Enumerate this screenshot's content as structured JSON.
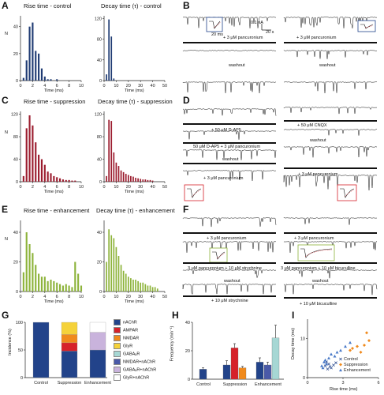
{
  "panels": {
    "A": {
      "letter": "A",
      "left_title": "Rise time - control",
      "right_title": "Decay time (τ) - control",
      "y_label": "N",
      "x_label": "Time (ms)"
    },
    "B": {
      "letter": "B",
      "scale_pa": "0.1 nA",
      "scale_time": "20 s",
      "scale_inset": "20 ms",
      "left_labels": [
        "+ 3 μM pancuronium",
        "washout"
      ],
      "right_labels": [
        "+ 3 μM pancuronium",
        "washout"
      ]
    },
    "C": {
      "letter": "C",
      "left_title": "Rise time - suppression",
      "right_title": "Decay time (τ) - suppression",
      "y_label": "N",
      "x_label": "Time (ms)"
    },
    "D": {
      "letter": "D",
      "left_labels": [
        "+ 50 μM D-AP5",
        "50 μM D-AP5 + 3 μM pancuronium",
        "washout",
        "+ 3 μM pancuronium"
      ],
      "right_labels": [
        "+ 50 μM CNQX",
        "washout",
        "+ 3 μM pancuronium"
      ]
    },
    "E": {
      "letter": "E",
      "left_title": "Rise time - enhancement",
      "right_title": "Decay time (τ) - enhancement",
      "y_label": "N",
      "x_label": "Time (ms)"
    },
    "F": {
      "letter": "F",
      "left_labels": [
        "+ 3 μM pancuronium",
        "3 μM pancuronium + 10 μM strychnine",
        "washout",
        "+ 10 μM strychnine"
      ],
      "right_labels": [
        "+ 3 μM pancuronium",
        "3 μM pancuronium + 10 μM bicuculline",
        "washout",
        "+ 10 μM bicuculline"
      ]
    },
    "G": {
      "letter": "G",
      "y_label": "Incidence (%)"
    },
    "H": {
      "letter": "H",
      "y_label": "Frequency (min⁻¹)"
    },
    "I": {
      "letter": "I",
      "y_label": "Decay time (ms)",
      "x_label": "Rise time (ms)"
    }
  },
  "colors": {
    "control": "#1f3b73",
    "suppression": "#9b1c2e",
    "enhancement": "#8db33a"
  },
  "chart_data": [
    {
      "id": "A-rise",
      "type": "bar",
      "title": "Rise time - control",
      "xlabel": "Time (ms)",
      "ylabel": "N",
      "xticks": [
        "0",
        "2",
        "4",
        "6",
        "8",
        "10"
      ],
      "yticks": [
        "0",
        "20",
        "40"
      ],
      "ylim": [
        0,
        48
      ],
      "xlim": [
        0,
        10
      ],
      "x": [
        0.5,
        1,
        1.5,
        2,
        2.5,
        3,
        3.5,
        4,
        4.5,
        5,
        5.5,
        6
      ],
      "values": [
        2,
        15,
        40,
        43,
        22,
        20,
        9,
        3,
        1,
        1,
        0,
        1
      ]
    },
    {
      "id": "A-decay",
      "type": "bar",
      "title": "Decay time (τ) - control",
      "xlabel": "Time (ms)",
      "ylabel": "",
      "xticks": [
        "0",
        "10",
        "20",
        "30",
        "40",
        "50"
      ],
      "yticks": [
        "0",
        "40",
        "80",
        "120"
      ],
      "ylim": [
        0,
        125
      ],
      "xlim": [
        0,
        50
      ],
      "x": [
        2,
        4,
        6,
        8
      ],
      "values": [
        12,
        118,
        85,
        4
      ]
    },
    {
      "id": "C-rise",
      "type": "bar",
      "title": "Rise time - suppression",
      "xlabel": "Time (ms)",
      "ylabel": "N",
      "xticks": [
        "0",
        "2",
        "4",
        "6",
        "8",
        "10"
      ],
      "yticks": [
        "0",
        "40",
        "80",
        "120"
      ],
      "ylim": [
        0,
        125
      ],
      "xlim": [
        0,
        10
      ],
      "x": [
        0.5,
        1,
        1.5,
        2,
        2.5,
        3,
        3.5,
        4,
        4.5,
        5,
        5.5,
        6,
        6.5,
        7,
        7.5,
        8,
        8.5,
        9
      ],
      "values": [
        10,
        95,
        118,
        100,
        70,
        48,
        40,
        30,
        18,
        15,
        10,
        8,
        6,
        4,
        3,
        3,
        2,
        2
      ]
    },
    {
      "id": "C-decay",
      "type": "bar",
      "title": "Decay time (τ) - suppression",
      "xlabel": "Time (ms)",
      "ylabel": "",
      "xticks": [
        "0",
        "10",
        "20",
        "30",
        "40",
        "50"
      ],
      "yticks": [
        "0",
        "40",
        "80",
        "120"
      ],
      "ylim": [
        0,
        125
      ],
      "xlim": [
        0,
        50
      ],
      "x": [
        2,
        4,
        6,
        8,
        10,
        12,
        14,
        16,
        18,
        20,
        22,
        24,
        26,
        28,
        30,
        32,
        34,
        36,
        38,
        40
      ],
      "values": [
        10,
        110,
        108,
        52,
        34,
        28,
        20,
        17,
        14,
        12,
        10,
        9,
        7,
        6,
        5,
        4,
        4,
        3,
        3,
        2
      ]
    },
    {
      "id": "E-rise",
      "type": "bar",
      "title": "Rise time - enhancement",
      "xlabel": "Time (ms)",
      "ylabel": "N",
      "xticks": [
        "0",
        "2",
        "4",
        "6",
        "8",
        "10"
      ],
      "yticks": [
        "0",
        "20",
        "40"
      ],
      "ylim": [
        0,
        48
      ],
      "xlim": [
        0,
        10
      ],
      "x": [
        0.5,
        1,
        1.5,
        2,
        2.5,
        3,
        3.5,
        4,
        4.5,
        5,
        5.5,
        6,
        6.5,
        7,
        7.5,
        8,
        8.5,
        9,
        9.5,
        10
      ],
      "values": [
        13,
        40,
        32,
        26,
        18,
        12,
        10,
        10,
        7,
        8,
        7,
        6,
        5,
        4,
        5,
        4,
        3,
        20,
        12,
        4
      ]
    },
    {
      "id": "E-decay",
      "type": "bar",
      "title": "Decay time (τ) - enhancement",
      "xlabel": "Time (ms)",
      "ylabel": "",
      "xticks": [
        "0",
        "10",
        "20",
        "30",
        "40",
        "50"
      ],
      "yticks": [
        "0",
        "20",
        "40"
      ],
      "ylim": [
        0,
        48
      ],
      "xlim": [
        0,
        50
      ],
      "x": [
        2,
        4,
        6,
        8,
        10,
        12,
        14,
        16,
        18,
        20,
        22,
        24,
        26,
        28,
        30,
        32,
        34,
        36,
        38,
        40,
        42,
        44
      ],
      "values": [
        20,
        42,
        38,
        36,
        30,
        24,
        18,
        14,
        12,
        10,
        9,
        8,
        8,
        7,
        6,
        6,
        5,
        4,
        4,
        3,
        3,
        2
      ]
    },
    {
      "id": "G",
      "type": "bar",
      "stacked": true,
      "ylabel": "Incidence (%)",
      "yticks": [
        "0",
        "50",
        "100"
      ],
      "ylim": [
        0,
        100
      ],
      "categories": [
        "Control",
        "Suppression",
        "Enhancement"
      ],
      "series": [
        {
          "name": "nAChR",
          "color": "#22438a",
          "values": [
            100,
            48,
            50
          ]
        },
        {
          "name": "AMPAR",
          "color": "#d6222a",
          "values": [
            0,
            15,
            0
          ]
        },
        {
          "name": "NMDAR",
          "color": "#f08a1c",
          "values": [
            0,
            15,
            0
          ]
        },
        {
          "name": "GlyR",
          "color": "#f5d23a",
          "values": [
            0,
            22,
            0
          ]
        },
        {
          "name": "GABAₐR",
          "color": "#a6d7d4",
          "values": [
            0,
            0,
            0
          ]
        },
        {
          "name": "NMDAR+nAChR",
          "color": "#4a5aa8",
          "values": [
            0,
            0,
            0
          ]
        },
        {
          "name": "GABAₐR+nAChR",
          "color": "#c9b3dc",
          "values": [
            0,
            0,
            32
          ]
        },
        {
          "name": "GlyR+nAChR",
          "color": "#ffffff",
          "values": [
            0,
            0,
            18
          ]
        }
      ]
    },
    {
      "id": "H",
      "type": "bar",
      "ylabel": "Frequency (min⁻¹)",
      "yticks": [
        "0",
        "20",
        "40"
      ],
      "ylim": [
        0,
        40
      ],
      "categories": [
        "Control",
        "Suppression",
        "Enhancement"
      ],
      "groups": [
        {
          "name": "Control",
          "bars": [
            {
              "color": "#22438a",
              "value": 7,
              "err": 1
            }
          ]
        },
        {
          "name": "Suppression",
          "bars": [
            {
              "color": "#22438a",
              "value": 10,
              "err": 3
            },
            {
              "color": "#d6222a",
              "value": 22,
              "err": 3
            },
            {
              "color": "#f08a1c",
              "value": 8,
              "err": 1
            }
          ]
        },
        {
          "name": "Enhancement",
          "bars": [
            {
              "color": "#22438a",
              "value": 12,
              "err": 3
            },
            {
              "color": "#4a5aa8",
              "value": 10,
              "err": 2
            },
            {
              "color": "#a6d7d4",
              "value": 29,
              "err": 9
            }
          ]
        }
      ]
    },
    {
      "id": "I",
      "type": "scatter",
      "xlabel": "Rise time (ms)",
      "ylabel": "Decay time (ms)",
      "xticks": [
        "0",
        "3",
        "6"
      ],
      "yticks": [
        "0",
        "10"
      ],
      "xlim": [
        0,
        6
      ],
      "ylim": [
        0,
        15
      ],
      "legend": [
        "Control",
        "Suppression",
        "Enhancement"
      ],
      "legend_loc": "bottom-right",
      "series": [
        {
          "name": "Control",
          "marker": "x",
          "color": "#22438a",
          "points": [
            [
              1.5,
              3
            ],
            [
              1.8,
              3.5
            ],
            [
              2.0,
              2.5
            ],
            [
              1.6,
              4
            ],
            [
              2.2,
              3.2
            ],
            [
              1.9,
              2.8
            ],
            [
              2.4,
              3.8
            ],
            [
              1.7,
              2.2
            ]
          ]
        },
        {
          "name": "Suppression",
          "marker": "diamond",
          "color": "#f08a1c",
          "points": [
            [
              3.8,
              7.5
            ],
            [
              4.2,
              8
            ],
            [
              4.8,
              8.3
            ],
            [
              5.2,
              9.5
            ],
            [
              5.0,
              11.5
            ],
            [
              3.6,
              7
            ],
            [
              4.5,
              6.5
            ]
          ]
        },
        {
          "name": "Enhancement",
          "marker": "triangle",
          "color": "#4a7ac8",
          "points": [
            [
              1.2,
              3
            ],
            [
              1.4,
              4
            ],
            [
              1.5,
              4.5
            ],
            [
              1.8,
              5
            ],
            [
              2.0,
              6
            ],
            [
              2.3,
              5.5
            ],
            [
              2.5,
              6.5
            ],
            [
              1.3,
              2.5
            ],
            [
              1.6,
              3.5
            ],
            [
              2.8,
              7
            ],
            [
              3.2,
              8
            ],
            [
              3.6,
              9
            ]
          ]
        }
      ]
    }
  ]
}
